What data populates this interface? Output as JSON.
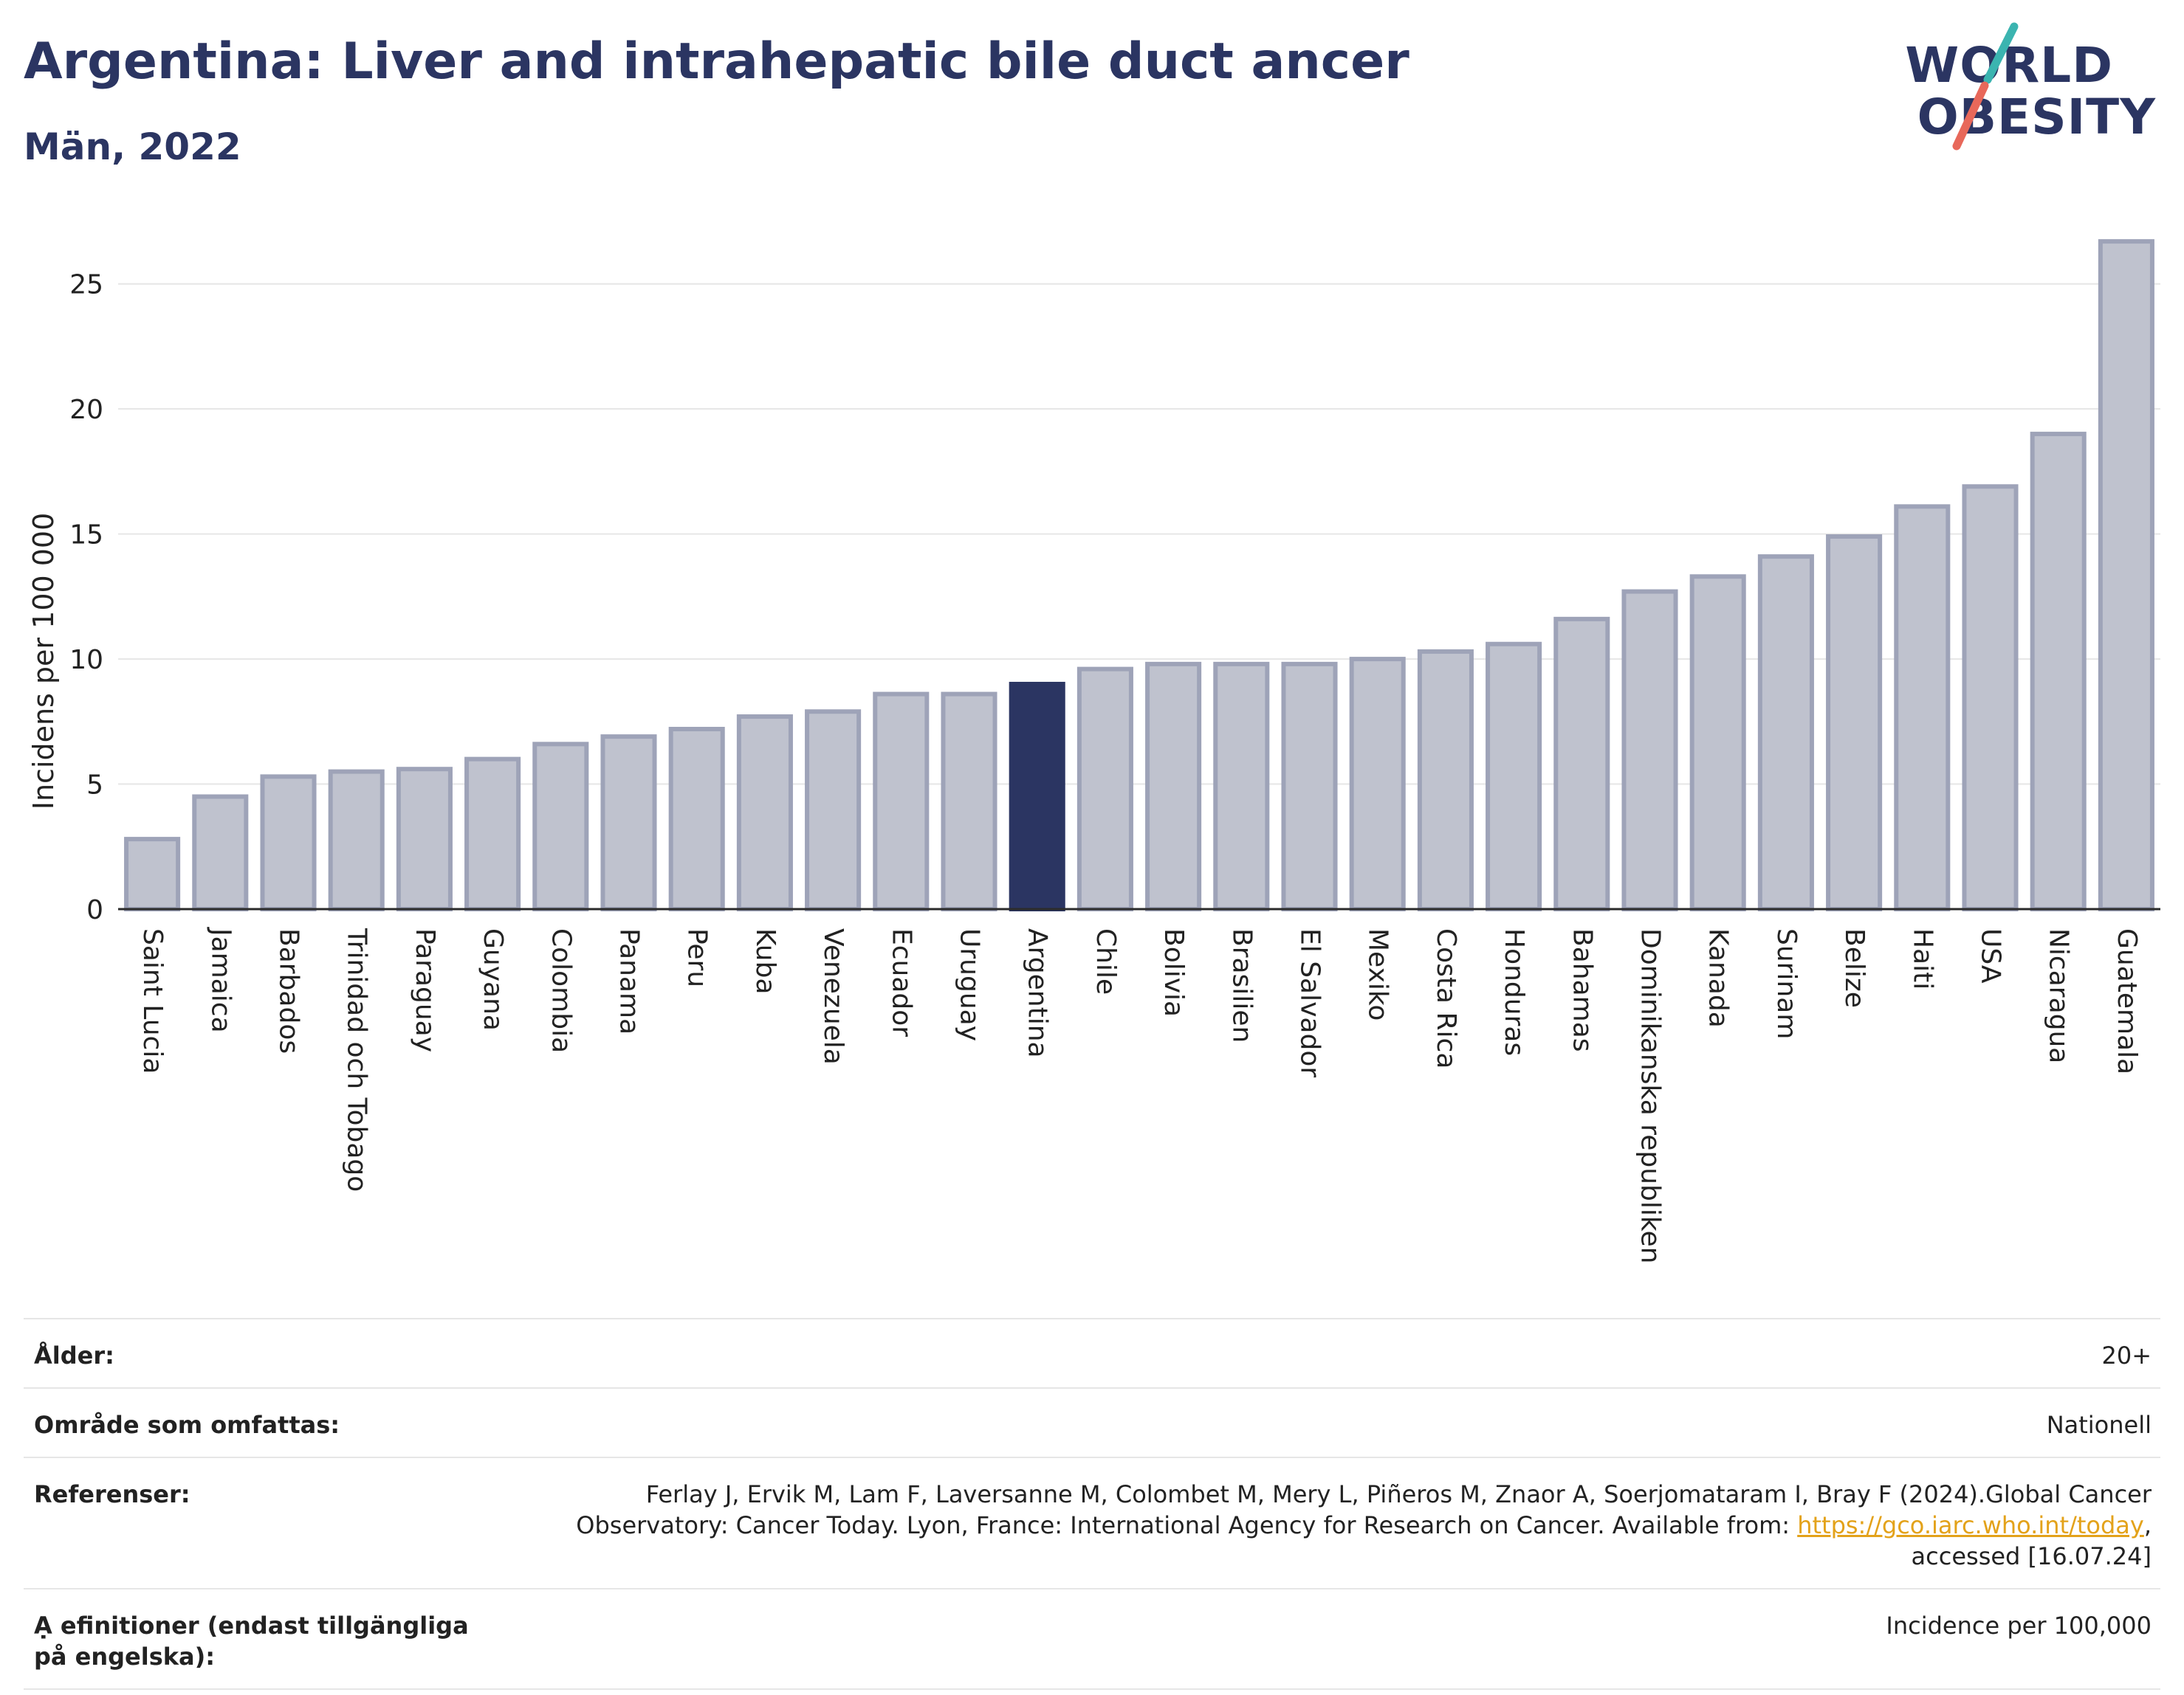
{
  "header": {
    "title": "Argentina: Liver and intrahepatic bile duct    ancer",
    "subtitle": "Män, 2022"
  },
  "logo": {
    "line1": "WORLD",
    "line2": "OBESITY",
    "colors": {
      "text": "#2b3562",
      "slash_top": "#3bb4b0",
      "slash_bottom": "#e8685a"
    }
  },
  "colors": {
    "bar_fill": "#bfc2ce",
    "bar_stroke": "#9ea3b8",
    "highlight": "#2b3562",
    "grid": "#e6e6e6"
  },
  "chart_data": {
    "type": "bar",
    "categories": [
      "Saint Lucia",
      "Jamaica",
      "Barbados",
      "Trinidad och Tobago",
      "Paraguay",
      "Guyana",
      "Colombia",
      "Panama",
      "Peru",
      "Kuba",
      "Venezuela",
      "Ecuador",
      "Uruguay",
      "Argentina",
      "Chile",
      "Bolivia",
      "Brasilien",
      "El Salvador",
      "Mexiko",
      "Costa Rica",
      "Honduras",
      "Bahamas",
      "Dominikanska republiken",
      "Kanada",
      "Surinam",
      "Belize",
      "Haiti",
      "USA",
      "Nicaragua",
      "Guatemala"
    ],
    "values": [
      2.8,
      4.5,
      5.3,
      5.5,
      5.6,
      6.0,
      6.6,
      6.9,
      7.2,
      7.7,
      7.9,
      8.6,
      8.6,
      9.0,
      9.6,
      9.8,
      9.8,
      9.8,
      10.0,
      10.3,
      10.6,
      11.6,
      12.7,
      13.3,
      14.1,
      14.9,
      16.1,
      16.9,
      19.0,
      26.7
    ],
    "highlight": "Argentina",
    "ylabel": "Incidens per 100 000",
    "xlabel": "",
    "ylim": [
      0,
      27.5
    ],
    "yticks": [
      0,
      5,
      10,
      15,
      20,
      25
    ],
    "grid": true
  },
  "info": {
    "rows": [
      {
        "key": "Ålder:",
        "value": "20+"
      },
      {
        "key": "Område som omfattas:",
        "value": "Nationell"
      },
      {
        "key": "Referenser:",
        "value_before": "Ferlay J, Ervik M, Lam F, Laversanne M, Colombet M, Mery L, Piñeros M, Znaor A, Soerjomataram I, Bray F (2024).Global Cancer Observatory: Cancer Today. Lyon, France: International Agency for Research on Cancer. Available from: ",
        "link": "https://gco.iarc.who.int/today",
        "value_after": ", accessed [16.07.24]"
      },
      {
        "key": "Ạ efinitioner (endast tillgängliga på engelska):",
        "value": "Incidence per 100,000"
      }
    ]
  }
}
